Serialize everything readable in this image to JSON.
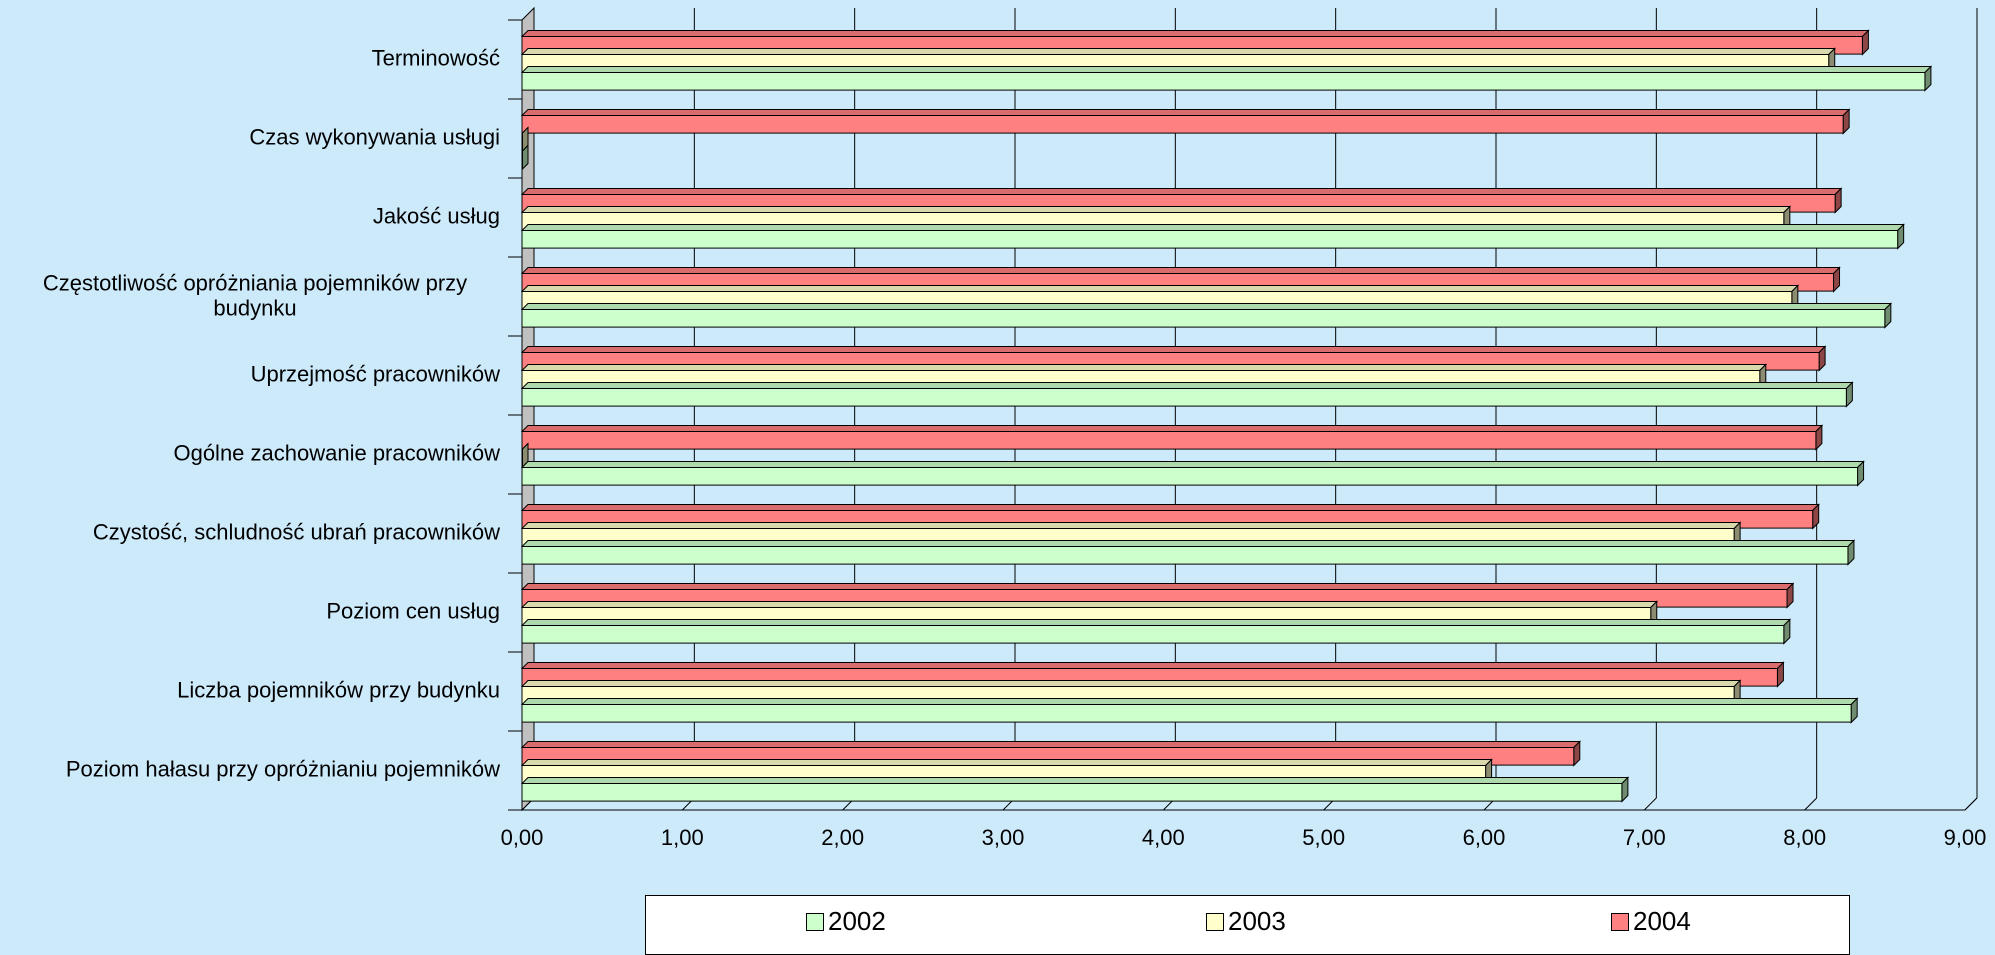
{
  "chart_data": {
    "type": "bar",
    "orientation": "horizontal",
    "categories": [
      "Terminowość",
      "Czas wykonywania usługi",
      "Jakość usług",
      "Częstotliwość opróżniania pojemników przy budynku",
      "Uprzejmość pracowników",
      "Ogólne zachowanie pracowników",
      "Czystość, schludność ubrań pracowników",
      "Poziom cen usług",
      "Liczba pojemników przy budynku",
      "Poziom hałasu przy opróżnianiu pojemników"
    ],
    "series": [
      {
        "name": "2002",
        "color": "#ccffcc",
        "values": [
          8.75,
          0,
          8.58,
          8.5,
          8.26,
          8.33,
          8.27,
          7.87,
          8.29,
          6.86
        ]
      },
      {
        "name": "2003",
        "color": "#ffffcc",
        "values": [
          8.15,
          0,
          7.87,
          7.92,
          7.72,
          0,
          7.56,
          7.04,
          7.56,
          6.01
        ]
      },
      {
        "name": "2004",
        "color": "#ff8080",
        "values": [
          8.36,
          8.24,
          8.19,
          8.18,
          8.09,
          8.07,
          8.05,
          7.89,
          7.83,
          6.56
        ]
      }
    ],
    "xlim": [
      0,
      9
    ],
    "xticks": [
      "0,00",
      "1,00",
      "2,00",
      "3,00",
      "4,00",
      "5,00",
      "6,00",
      "7,00",
      "8,00",
      "9,00"
    ],
    "grid": true,
    "legend_position": "bottom"
  }
}
